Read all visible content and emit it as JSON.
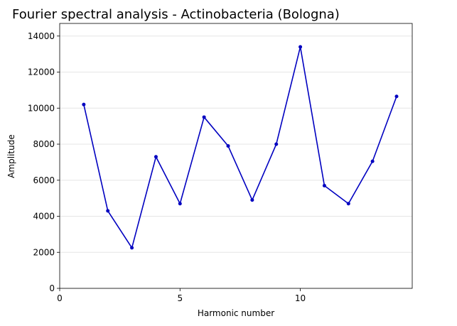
{
  "chart_data": {
    "type": "line",
    "title": "Fourier spectral analysis - Actinobacteria (Bologna)",
    "xlabel": "Harmonic number",
    "ylabel": "Amplitude",
    "xlim": [
      0,
      14.65
    ],
    "ylim": [
      0,
      14700
    ],
    "x_ticks": [
      0,
      5,
      10
    ],
    "y_ticks": [
      0,
      2000,
      4000,
      6000,
      8000,
      10000,
      12000,
      14000
    ],
    "grid": "horizontal",
    "color": "#0000c0",
    "series": [
      {
        "x": [
          1,
          2,
          3,
          4,
          5,
          6,
          7,
          8,
          9,
          10,
          11,
          12,
          13,
          14
        ],
        "values": [
          10200,
          4300,
          2250,
          7300,
          4700,
          9500,
          7900,
          4900,
          8000,
          13400,
          5700,
          4700,
          7050,
          10650
        ]
      }
    ]
  }
}
